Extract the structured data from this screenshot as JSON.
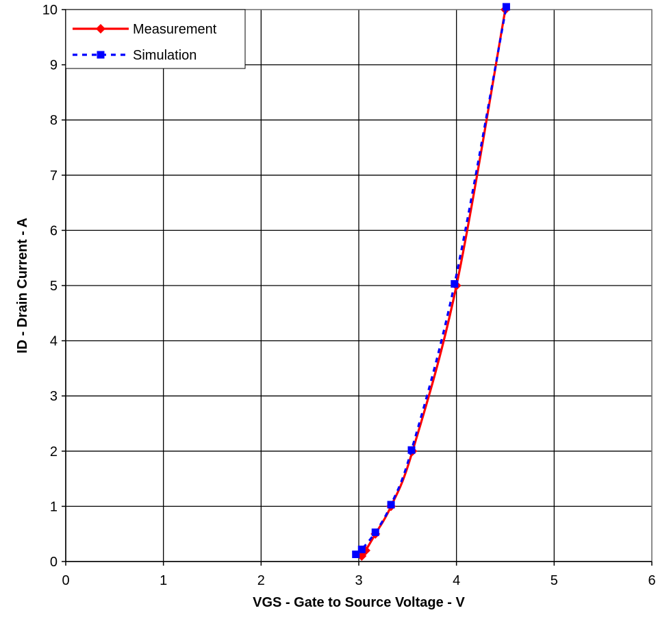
{
  "chart_data": {
    "type": "line",
    "title": "",
    "xlabel": "VGS - Gate to Source Voltage - V",
    "ylabel": "ID - Drain Current - A",
    "xlim": [
      0,
      6
    ],
    "ylim": [
      0,
      10
    ],
    "x_ticks": [
      0,
      1,
      2,
      3,
      4,
      5,
      6
    ],
    "y_ticks": [
      0,
      1,
      2,
      3,
      4,
      5,
      6,
      7,
      8,
      9,
      10
    ],
    "grid": true,
    "legend_position": "top-left",
    "series": [
      {
        "name": "Measurement",
        "color": "#ff0000",
        "line_style": "solid",
        "marker": "diamond",
        "points": [
          {
            "x": 3.03,
            "y": 0.1
          },
          {
            "x": 3.07,
            "y": 0.2
          },
          {
            "x": 3.17,
            "y": 0.5
          },
          {
            "x": 3.33,
            "y": 1.0
          },
          {
            "x": 3.55,
            "y": 2.0
          },
          {
            "x": 4.0,
            "y": 5.0
          },
          {
            "x": 4.5,
            "y": 10.0
          }
        ]
      },
      {
        "name": "Simulation",
        "color": "#0000ff",
        "line_style": "dashed",
        "marker": "square",
        "points": [
          {
            "x": 2.97,
            "y": 0.13
          },
          {
            "x": 3.03,
            "y": 0.22
          },
          {
            "x": 3.17,
            "y": 0.53
          },
          {
            "x": 3.33,
            "y": 1.03
          },
          {
            "x": 3.54,
            "y": 2.02
          },
          {
            "x": 3.98,
            "y": 5.03
          },
          {
            "x": 4.51,
            "y": 10.05
          }
        ]
      }
    ]
  }
}
